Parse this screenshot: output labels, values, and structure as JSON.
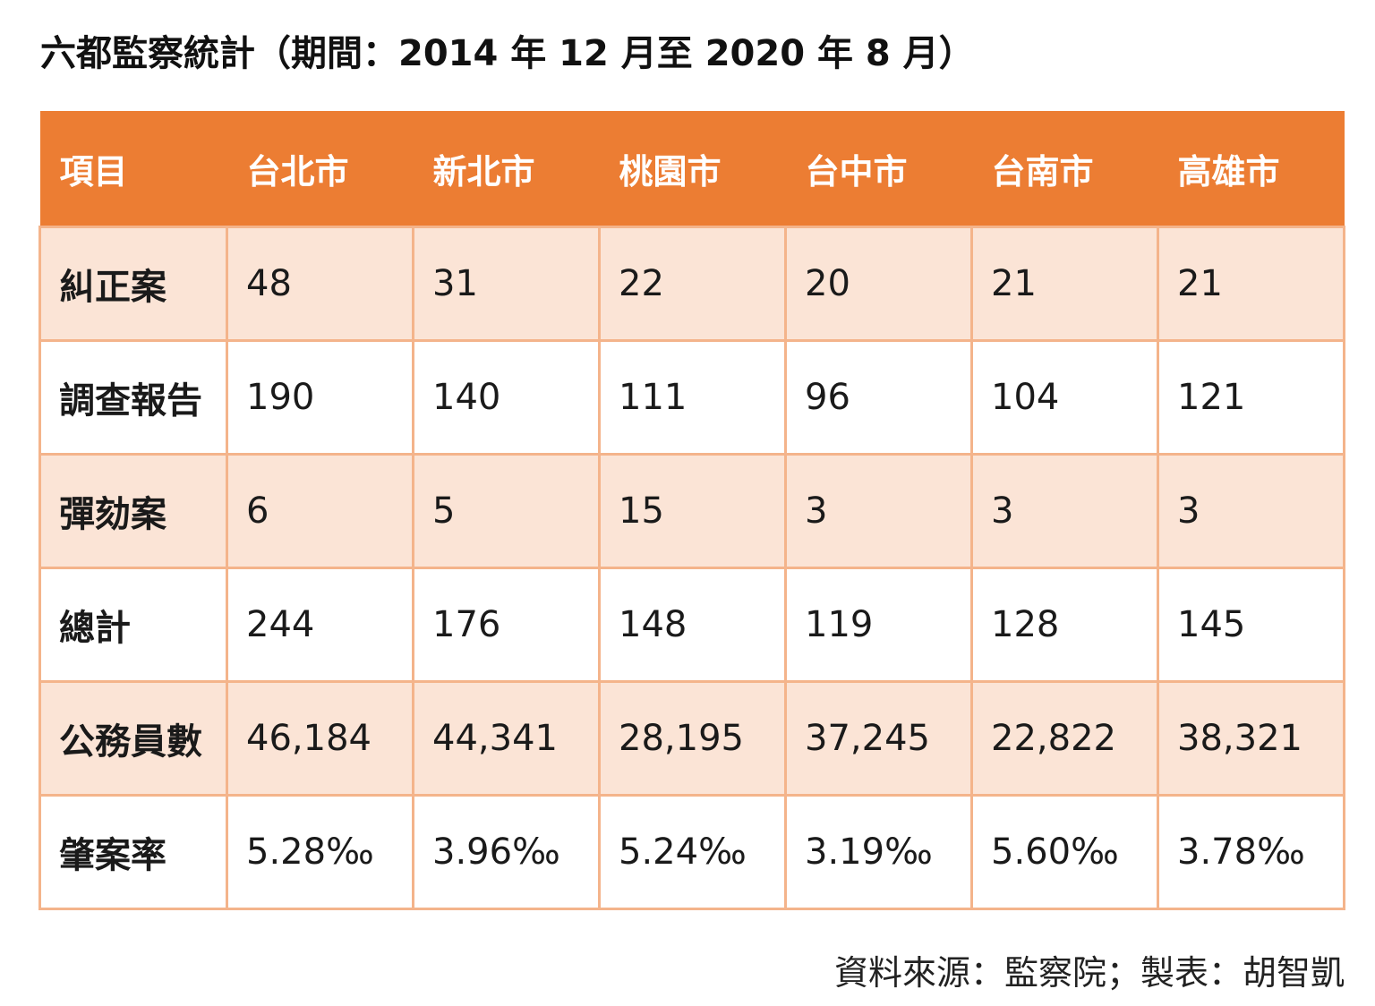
{
  "title": "六都監察統計（期間：2014 年 12 月至 2020 年 8 月）",
  "colors": {
    "header_bg": "#ec7d33",
    "header_text": "#ffffff",
    "row_shaded": "#fbe4d6",
    "row_plain": "#ffffff",
    "border": "#f4b48b"
  },
  "chart_data": {
    "type": "table",
    "title": "六都監察統計（期間：2014 年 12 月至 2020 年 8 月）",
    "columns": [
      "項目",
      "台北市",
      "新北市",
      "桃園市",
      "台中市",
      "台南市",
      "高雄市"
    ],
    "rows": [
      {
        "label": "糾正案",
        "values": [
          "48",
          "31",
          "22",
          "20",
          "21",
          "21"
        ]
      },
      {
        "label": "調查報告",
        "values": [
          "190",
          "140",
          "111",
          "96",
          "104",
          "121"
        ]
      },
      {
        "label": "彈劾案",
        "values": [
          "6",
          "5",
          "15",
          "3",
          "3",
          "3"
        ]
      },
      {
        "label": "總計",
        "values": [
          "244",
          "176",
          "148",
          "119",
          "128",
          "145"
        ]
      },
      {
        "label": "公務員數",
        "values": [
          "46,184",
          "44,341",
          "28,195",
          "37,245",
          "22,822",
          "38,321"
        ]
      },
      {
        "label": "肇案率",
        "values": [
          "5.28‰",
          "3.96‰",
          "5.24‰",
          "3.19‰",
          "5.60‰",
          "3.78‰"
        ]
      }
    ]
  },
  "source": "資料來源：監察院；製表：胡智凱"
}
